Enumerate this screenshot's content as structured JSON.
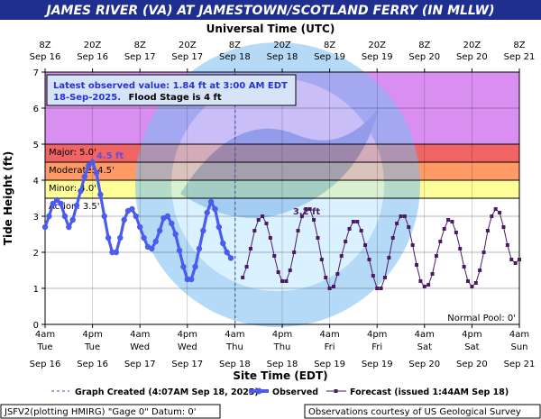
{
  "title": "JAMES RIVER (VA) AT JAMESTOWN/SCOTLAND FERRY (IN MLLW)",
  "top_axis_title": "Universal Time (UTC)",
  "bottom_axis_title": "Site Time (EDT)",
  "y_axis_title": "Tide Height (ft)",
  "colors": {
    "title_bar": "#1f2f8f",
    "observed": "#4a5cf0",
    "forecast": "#4b1a66",
    "band_above_major": "#d98ff0",
    "band_major": "#f06464",
    "band_moderate": "#ff9a66",
    "band_minor": "#ffd27a",
    "band_action": "#ffff9a"
  },
  "info_box": {
    "line1": "Latest observed value: 1.84 ft at 3:00 AM EDT",
    "line2_date": "18-Sep-2025.",
    "line2_flood": "Flood Stage is 4 ft"
  },
  "thresholds": [
    {
      "name": "Major",
      "label": "Major: 5.0'",
      "value": 5.0
    },
    {
      "name": "Moderate",
      "label": "Moderate: 4.5'",
      "value": 4.5
    },
    {
      "name": "Minor",
      "label": "Minor: 4.0'",
      "value": 4.0
    },
    {
      "name": "Action",
      "label": "Action: 3.5'",
      "value": 3.5
    }
  ],
  "normal_pool_label": "Normal Pool: 0'",
  "observed_peak_label": "4.5 ft",
  "forecast_peak_label": "3.2 ft",
  "legend": {
    "graph_created": "Graph Created (4:07AM Sep 18, 2025)",
    "observed": "Observed",
    "forecast": "Forecast (issued 1:44AM Sep 18)"
  },
  "footer": {
    "left": "JSFV2(plotting HMIRG) \"Gage 0\" Datum: 0'",
    "right": "Observations courtesy of US Geological Survey"
  },
  "chart_data": {
    "type": "line",
    "title": "JAMES RIVER (VA) AT JAMESTOWN/SCOTLAND FERRY (IN MLLW)",
    "xlabel": "Site Time (EDT)",
    "ylabel": "Tide Height (ft)",
    "x_unit": "hours after 4am EDT Sep 16",
    "xlim": [
      0,
      120
    ],
    "ylim": [
      0,
      7
    ],
    "y_ticks": [
      0,
      1,
      2,
      3,
      4,
      5,
      6,
      7
    ],
    "x_ticks_bottom": [
      {
        "hour": 0,
        "time": "4am",
        "day": "Tue",
        "date": "Sep 16"
      },
      {
        "hour": 12,
        "time": "4pm",
        "day": "Tue",
        "date": "Sep 16"
      },
      {
        "hour": 24,
        "time": "4am",
        "day": "Wed",
        "date": "Sep 17"
      },
      {
        "hour": 36,
        "time": "4pm",
        "day": "Wed",
        "date": "Sep 17"
      },
      {
        "hour": 48,
        "time": "4am",
        "day": "Thu",
        "date": "Sep 18"
      },
      {
        "hour": 60,
        "time": "4pm",
        "day": "Thu",
        "date": "Sep 18"
      },
      {
        "hour": 72,
        "time": "4am",
        "day": "Fri",
        "date": "Sep 19"
      },
      {
        "hour": 84,
        "time": "4pm",
        "day": "Fri",
        "date": "Sep 19"
      },
      {
        "hour": 96,
        "time": "4am",
        "day": "Sat",
        "date": "Sep 20"
      },
      {
        "hour": 108,
        "time": "4pm",
        "day": "Sat",
        "date": "Sep 20"
      },
      {
        "hour": 120,
        "time": "4am",
        "day": "Sun",
        "date": "Sep 21"
      }
    ],
    "x_ticks_top": [
      {
        "hour": 0,
        "time": "8Z",
        "date": "Sep 16"
      },
      {
        "hour": 12,
        "time": "20Z",
        "date": "Sep 16"
      },
      {
        "hour": 24,
        "time": "8Z",
        "date": "Sep 17"
      },
      {
        "hour": 36,
        "time": "20Z",
        "date": "Sep 17"
      },
      {
        "hour": 48,
        "time": "8Z",
        "date": "Sep 18"
      },
      {
        "hour": 60,
        "time": "20Z",
        "date": "Sep 18"
      },
      {
        "hour": 72,
        "time": "8Z",
        "date": "Sep 19"
      },
      {
        "hour": 84,
        "time": "20Z",
        "date": "Sep 19"
      },
      {
        "hour": 96,
        "time": "8Z",
        "date": "Sep 20"
      },
      {
        "hour": 108,
        "time": "20Z",
        "date": "Sep 20"
      },
      {
        "hour": 120,
        "time": "8Z",
        "date": "Sep 21"
      }
    ],
    "graph_created_hour": 48.1,
    "series": [
      {
        "name": "Observed",
        "x": [
          0,
          1,
          2,
          3,
          4,
          5,
          6,
          7,
          8,
          9,
          10,
          11,
          12,
          13,
          14,
          15,
          16,
          17,
          18,
          19,
          20,
          21,
          22,
          23,
          24,
          25,
          26,
          27,
          28,
          29,
          30,
          31,
          32,
          33,
          34,
          35,
          36,
          37,
          38,
          39,
          40,
          41,
          42,
          43,
          44,
          45,
          46,
          47
        ],
        "y": [
          2.7,
          3.0,
          3.35,
          3.45,
          3.35,
          3.0,
          2.7,
          2.9,
          3.3,
          3.7,
          4.1,
          4.4,
          4.5,
          4.2,
          3.6,
          3.0,
          2.4,
          2.0,
          2.0,
          2.4,
          2.9,
          3.15,
          3.2,
          3.0,
          2.7,
          2.4,
          2.15,
          2.1,
          2.3,
          2.6,
          2.95,
          3.0,
          2.8,
          2.5,
          2.05,
          1.6,
          1.25,
          1.25,
          1.6,
          2.1,
          2.6,
          3.1,
          3.4,
          3.2,
          2.7,
          2.25,
          2.0,
          1.84
        ]
      },
      {
        "name": "Forecast (issued 1:44AM Sep 18)",
        "x": [
          50,
          51,
          52,
          53,
          54,
          55,
          56,
          57,
          58,
          59,
          60,
          61,
          62,
          63,
          64,
          65,
          66,
          67,
          68,
          69,
          70,
          71,
          72,
          73,
          74,
          75,
          76,
          77,
          78,
          79,
          80,
          81,
          82,
          83,
          84,
          85,
          86,
          87,
          88,
          89,
          90,
          91,
          92,
          93,
          94,
          95,
          96,
          97,
          98,
          99,
          100,
          101,
          102,
          103,
          104,
          105,
          106,
          107,
          108,
          109,
          110,
          111,
          112,
          113,
          114,
          115,
          116,
          117,
          118,
          119,
          120
        ],
        "y": [
          1.3,
          1.6,
          2.1,
          2.6,
          2.9,
          3.0,
          2.8,
          2.4,
          1.9,
          1.45,
          1.2,
          1.2,
          1.5,
          2.0,
          2.6,
          3.0,
          3.2,
          3.2,
          2.9,
          2.4,
          1.8,
          1.3,
          1.0,
          1.05,
          1.4,
          1.9,
          2.3,
          2.65,
          2.85,
          2.85,
          2.6,
          2.2,
          1.8,
          1.35,
          1.0,
          1.0,
          1.3,
          1.85,
          2.4,
          2.8,
          3.0,
          3.0,
          2.7,
          2.2,
          1.65,
          1.2,
          1.05,
          1.1,
          1.4,
          1.9,
          2.3,
          2.65,
          2.9,
          2.85,
          2.55,
          2.1,
          1.6,
          1.2,
          1.05,
          1.15,
          1.5,
          2.0,
          2.6,
          3.0,
          3.2,
          3.1,
          2.7,
          2.2,
          1.8,
          1.7,
          1.8
        ]
      }
    ]
  }
}
